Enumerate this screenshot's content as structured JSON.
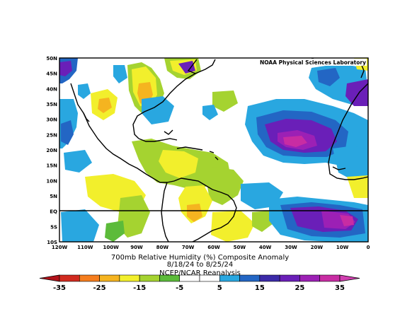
{
  "map": {
    "lat_labels": [
      "50N",
      "45N",
      "40N",
      "35N",
      "30N",
      "25N",
      "20N",
      "15N",
      "10N",
      "5N",
      "EQ",
      "5S",
      "10S"
    ],
    "lon_labels": [
      "120W",
      "110W",
      "100W",
      "90W",
      "80W",
      "70W",
      "60W",
      "50W",
      "40W",
      "30W",
      "20W",
      "10W",
      "0"
    ],
    "credit": "NOAA Physical Sciences Laboratory"
  },
  "caption": {
    "line1": "700mb Relative Humidity (%) Composite Anomaly",
    "line2": "8/18/24  to 8/25/24",
    "line3": "NCEP/NCAR Reanalysis"
  },
  "colorbar": {
    "labels": [
      "-35",
      "-25",
      "-15",
      "-5",
      "5",
      "15",
      "25",
      "35"
    ],
    "colors": [
      "#d12a1f",
      "#f57d1e",
      "#f5b420",
      "#f2ef2c",
      "#a5d330",
      "#5cbb3a",
      "#ffffff",
      "#ffffff",
      "#29a7e0",
      "#2366c4",
      "#3b2aa8",
      "#6a1fb8",
      "#9c20b5",
      "#c82ca3"
    ]
  },
  "colors": {
    "land_outline": "#000000",
    "background": "#ffffff"
  }
}
